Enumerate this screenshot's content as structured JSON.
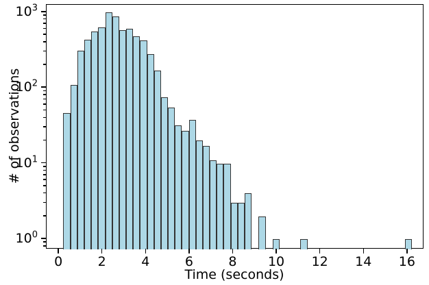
{
  "chart_data": {
    "type": "bar",
    "subtype": "histogram",
    "title": "",
    "xlabel": "Time (seconds)",
    "ylabel": "# of observations",
    "yscale": "log",
    "grid": false,
    "legend": null,
    "bin_start": 0.2,
    "bin_width": 0.32,
    "counts": [
      46,
      110,
      310,
      430,
      560,
      630,
      1000,
      880,
      580,
      600,
      480,
      420,
      280,
      170,
      75,
      55,
      32,
      27,
      38,
      20,
      17,
      11,
      10,
      10,
      3,
      3,
      4,
      0,
      2,
      0,
      1,
      0,
      0,
      0,
      1,
      0,
      0,
      0,
      0,
      0,
      0,
      0,
      0,
      0,
      0,
      0,
      0,
      0,
      0,
      1
    ],
    "x_ticks": [
      0,
      2,
      4,
      6,
      8,
      10,
      12,
      14,
      16
    ],
    "y_tick_exponents": [
      0,
      1,
      2,
      3
    ],
    "y_tick_base": 10,
    "xlim": [
      -0.57,
      16.76
    ],
    "ylim": [
      0.73,
      1253
    ],
    "bar_fill_color": "#ADD8E6",
    "bar_edge_color": "#333333",
    "axis_color": "#000000"
  }
}
